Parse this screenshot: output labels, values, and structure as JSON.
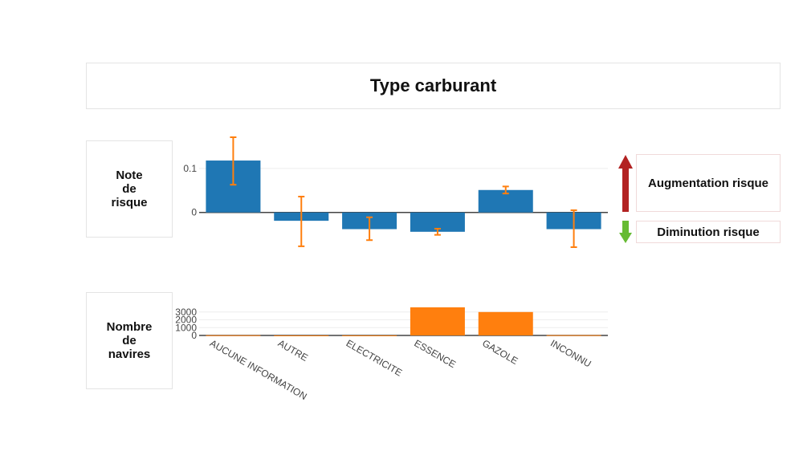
{
  "title": "Type carburant",
  "risk_label": "Note\nde\nrisque",
  "count_label": "Nombre\nde\nnavires",
  "legend": {
    "increase": "Augmentation risque",
    "decrease": "Diminution risque",
    "increase_color": "#b22222",
    "decrease_color": "#66bb33"
  },
  "chart_data": [
    {
      "type": "bar",
      "categories": [
        "AUCUNE INFORMATION",
        "AUTRE",
        "ELECTRICITE",
        "ESSENCE",
        "GAZOLE",
        "INCONNU"
      ],
      "values": [
        0.118,
        -0.019,
        -0.038,
        -0.044,
        0.051,
        -0.038
      ],
      "error_low": [
        0.063,
        -0.077,
        -0.063,
        -0.051,
        0.043,
        -0.079
      ],
      "error_high": [
        0.171,
        0.036,
        -0.011,
        -0.037,
        0.059,
        0.005
      ],
      "ylim": [
        -0.079,
        0.171
      ],
      "yticks": [
        0,
        0.1
      ],
      "ytick_labels": [
        "0",
        "0.1"
      ],
      "grid": true,
      "bar_color": "#1f77b4",
      "error_color": "#ff7f0e"
    },
    {
      "type": "bar",
      "categories": [
        "AUCUNE INFORMATION",
        "AUTRE",
        "ELECTRICITE",
        "ESSENCE",
        "GAZOLE",
        "INCONNU"
      ],
      "values": [
        30,
        5,
        10,
        3600,
        3000,
        40
      ],
      "ylim": [
        0,
        3700
      ],
      "yticks": [
        0,
        1000,
        2000,
        3000
      ],
      "ytick_labels": [
        "0",
        "1000",
        "2000",
        "3000"
      ],
      "grid": true,
      "bar_color": "#ff7f0e"
    }
  ]
}
